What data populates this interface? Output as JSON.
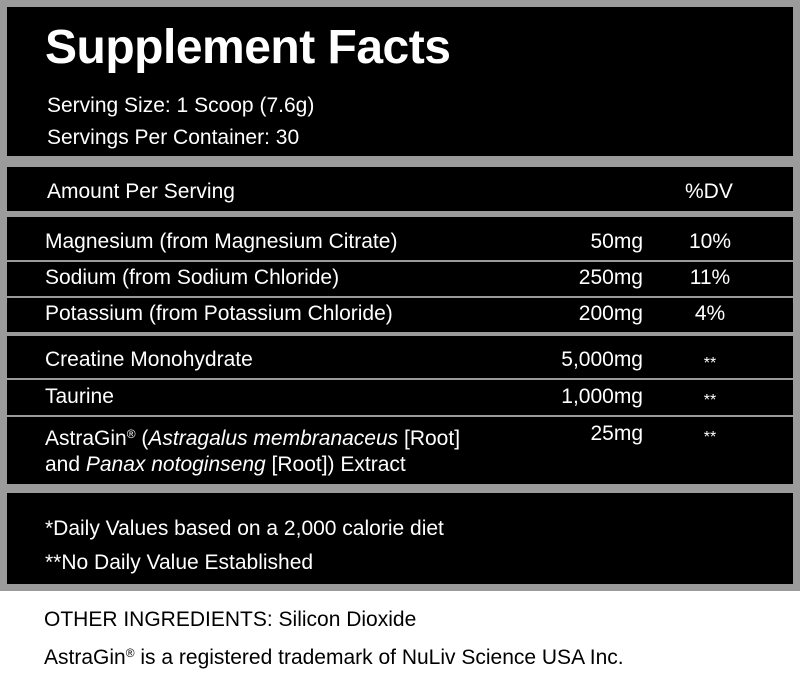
{
  "title": "Supplement Facts",
  "serving_size": "Serving Size: 1 Scoop (7.6g)",
  "servings_per_container": "Servings Per Container: 30",
  "header": {
    "amount_per_serving": "Amount Per Serving",
    "dv": "%DV"
  },
  "rows": [
    {
      "name": "Magnesium (from Magnesium Citrate)",
      "amount": "50mg",
      "dv": "10%"
    },
    {
      "name": "Sodium (from Sodium Chloride)",
      "amount": "250mg",
      "dv": "11%"
    },
    {
      "name": "Potassium (from Potassium Chloride)",
      "amount": "200mg",
      "dv": "4%"
    },
    {
      "name": "Creatine Monohydrate",
      "amount": "5,000mg",
      "dv": "**"
    },
    {
      "name": "Taurine",
      "amount": "1,000mg",
      "dv": "**"
    },
    {
      "name_parts": {
        "brand": "AstraGin",
        "reg": "®",
        "p1_italic": "Astragalus membranaceus",
        "p1_rest": " [Root]",
        "p2_pre": "and ",
        "p2_italic": "Panax notoginseng",
        "p2_rest": " [Root]) Extract"
      },
      "amount": "25mg",
      "dv": "**"
    }
  ],
  "footnotes": {
    "daily_values": "*Daily Values based on a 2,000 calorie diet",
    "no_dv": "**No Daily Value Established"
  },
  "other_ingredients": "OTHER INGREDIENTS: Silicon Dioxide",
  "trademark": {
    "brand": "AstraGin",
    "reg": "®",
    "rest": " is a registered trademark of NuLiv Science USA Inc."
  }
}
